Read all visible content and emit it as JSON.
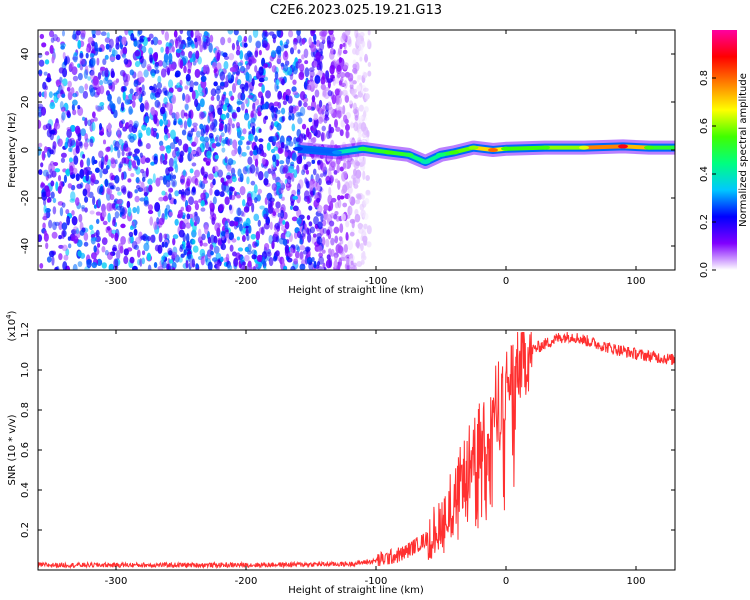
{
  "figure": {
    "title": "C2E6.2023.025.19.21.G13"
  },
  "chart_data": [
    {
      "type": "heatmap",
      "id": "spectrogram",
      "xlabel": "Height of straight line (km)",
      "ylabel": "Frequency (Hz)",
      "xlim": [
        -360,
        130
      ],
      "ylim": [
        -50,
        50
      ],
      "xticks": [
        -300,
        -200,
        -100,
        0,
        100
      ],
      "yticks": [
        -40,
        -20,
        0,
        20,
        40
      ],
      "grid": false,
      "colorbar": {
        "label": "Normalized spectral amplitude",
        "range": [
          0,
          1
        ],
        "ticks": [
          0.0,
          0.2,
          0.4,
          0.6,
          0.8
        ],
        "colors": [
          "#ffffff",
          "#8000ff",
          "#0000ff",
          "#00c8ff",
          "#00ff80",
          "#40ff00",
          "#ffff00",
          "#ff8000",
          "#ff0000",
          "#ff00a0"
        ]
      },
      "noise_region_x": [
        -360,
        -105
      ],
      "carrier_trace": [
        {
          "x": -160,
          "freq": 0.5,
          "amp": 0.25
        },
        {
          "x": -130,
          "freq": -1,
          "amp": 0.3
        },
        {
          "x": -110,
          "freq": 0.5,
          "amp": 0.5
        },
        {
          "x": -90,
          "freq": -1,
          "amp": 0.55
        },
        {
          "x": -75,
          "freq": -2,
          "amp": 0.5
        },
        {
          "x": -62,
          "freq": -5,
          "amp": 0.4
        },
        {
          "x": -50,
          "freq": -2,
          "amp": 0.45
        },
        {
          "x": -40,
          "freq": -1,
          "amp": 0.55
        },
        {
          "x": -25,
          "freq": 1,
          "amp": 0.6
        },
        {
          "x": -10,
          "freq": 0,
          "amp": 0.8
        },
        {
          "x": 0,
          "freq": 0.5,
          "amp": 0.55
        },
        {
          "x": 30,
          "freq": 1,
          "amp": 0.55
        },
        {
          "x": 60,
          "freq": 1,
          "amp": 0.65
        },
        {
          "x": 90,
          "freq": 1.5,
          "amp": 0.9
        },
        {
          "x": 110,
          "freq": 1,
          "amp": 0.55
        },
        {
          "x": 130,
          "freq": 1,
          "amp": 0.5
        }
      ]
    },
    {
      "type": "line",
      "id": "snr",
      "xlabel": "Height of straight line (km)",
      "ylabel": "SNR (10 * v/v)",
      "yexponent_label": "(x10",
      "yexponent_power": "4",
      "yexponent_close": ")",
      "xlim": [
        -360,
        130
      ],
      "ylim": [
        0,
        1.2
      ],
      "xticks": [
        -300,
        -200,
        -100,
        0,
        100
      ],
      "yticks": [
        0.2,
        0.4,
        0.6,
        0.8,
        1.0,
        1.2
      ],
      "grid": false,
      "series": [
        {
          "color": "#ff3030",
          "x": [
            -360,
            -300,
            -200,
            -120,
            -100,
            -80,
            -60,
            -50,
            -40,
            -30,
            -20,
            -10,
            0,
            10,
            20,
            30,
            40,
            50,
            60,
            80,
            100,
            130
          ],
          "y": [
            0.025,
            0.025,
            0.025,
            0.03,
            0.045,
            0.08,
            0.16,
            0.25,
            0.38,
            0.52,
            0.66,
            0.8,
            0.92,
            1.03,
            1.1,
            1.13,
            1.16,
            1.17,
            1.15,
            1.11,
            1.08,
            1.05
          ]
        }
      ]
    }
  ]
}
